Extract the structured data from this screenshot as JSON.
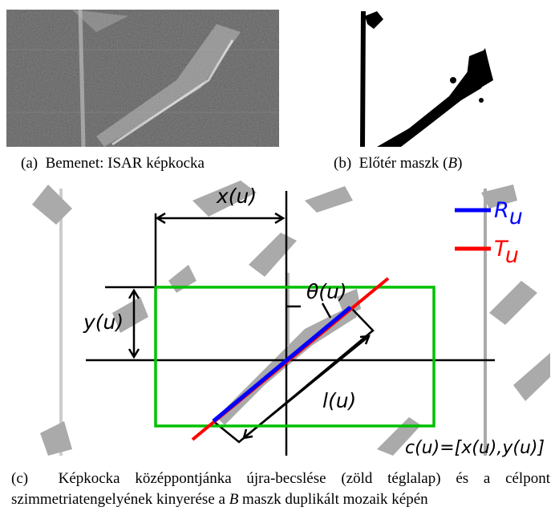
{
  "figure": {
    "panels": [
      {
        "label": "(a)",
        "caption": "Bemenet: ISAR képkocka"
      },
      {
        "label": "(b)",
        "caption": "Előtér maszk (",
        "caption_italic": "B",
        "caption_end": ")"
      }
    ],
    "diagram": {
      "x_label": "x(u)",
      "y_label": "y(u)",
      "theta_label": "θ(u)",
      "l_label": "l(u)",
      "center_label": "c(u)=[x(u),y(u)]",
      "legend": [
        {
          "symbol": "R",
          "subscript": "u",
          "color": "#0000ff"
        },
        {
          "symbol": "T",
          "subscript": "u",
          "color": "#ff0000"
        }
      ]
    },
    "caption": {
      "label": "(c)",
      "text_before": "Képkocka középpontjánka újra-becslése (zöld téglalap) és a célpont szimmetriatengelyének kinyerése a ",
      "italic": "B",
      "text_after": " maszk duplikált mozaik képén"
    }
  }
}
